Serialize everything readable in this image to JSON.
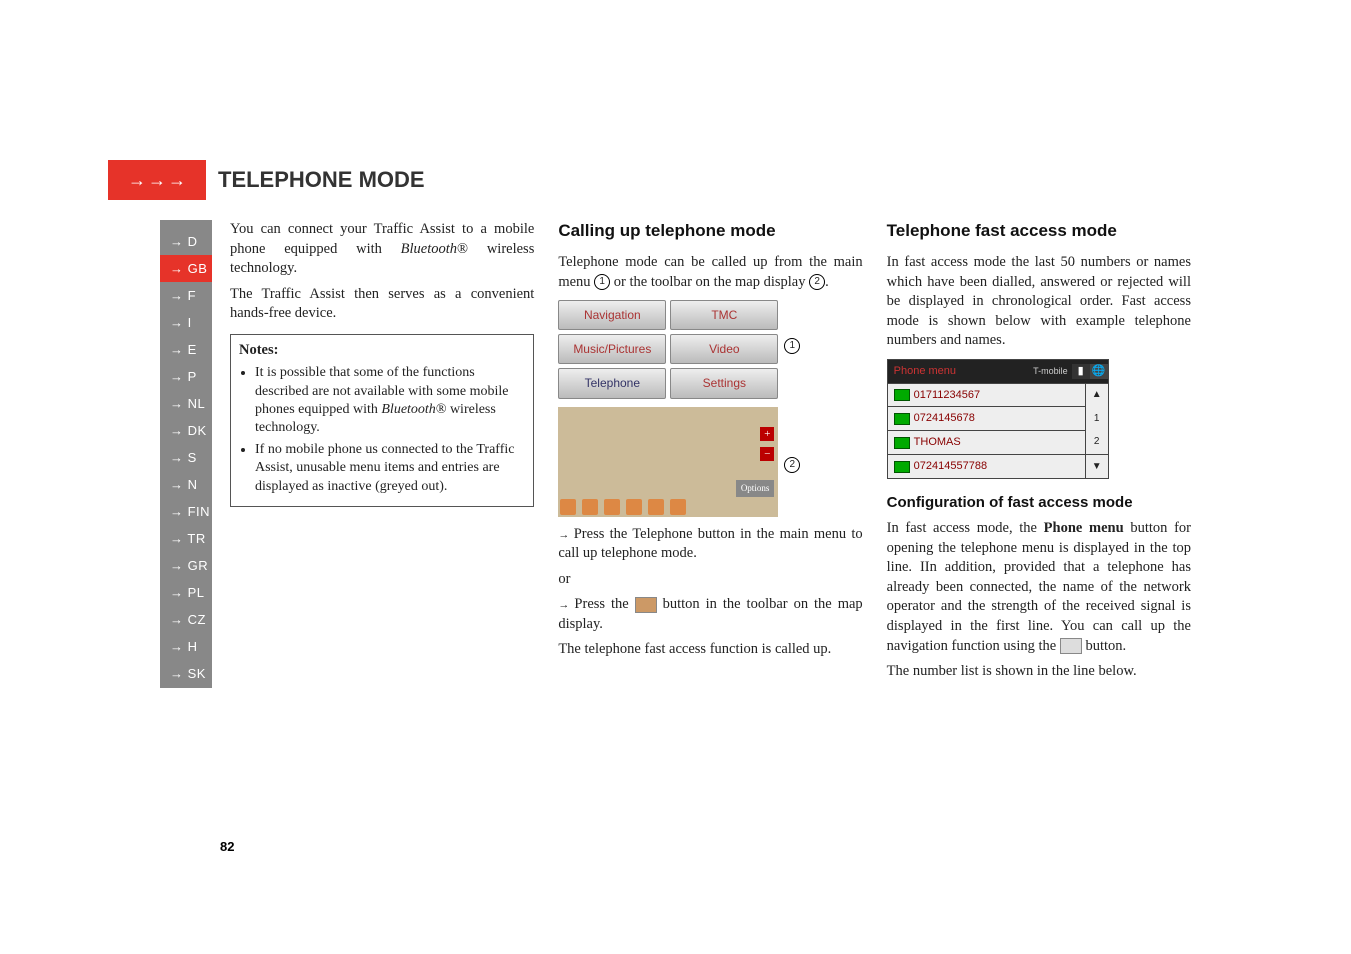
{
  "header": {
    "arrow_glyph": "→→→",
    "title": "TELEPHONE MODE"
  },
  "sidebar": {
    "items": [
      "→ D",
      "→ GB",
      "→ F",
      "→ I",
      "→ E",
      "→ P",
      "→ NL",
      "→ DK",
      "→ S",
      "→ N",
      "→ FIN",
      "→ TR",
      "→ GR",
      "→ PL",
      "→ CZ",
      "→ H",
      "→ SK"
    ],
    "active_index": 1
  },
  "col1": {
    "intro_pre": "You can connect your Traffic Assist to a mobile phone equipped with ",
    "bluetooth": "Bluetooth",
    "reg": "®",
    "intro_post": " wireless technology.",
    "line2": "The Traffic Assist then serves as a convenient hands-free device.",
    "notes_label": "Notes:",
    "note1_pre": "It is possible that some of the functions described are not available with some mobile phones equipped with ",
    "note1_bt": "Bluetooth",
    "note1_post": "® wireless technology.",
    "note2": "If no mobile phone us connected to the Traffic Assist, unusable menu items and entries are displayed as inactive (greyed out)."
  },
  "col2": {
    "heading": "Calling up telephone mode",
    "p1_a": "Telephone mode can be called up from the main menu ",
    "p1_b": " or the toolbar on the map display ",
    "menu": {
      "r1": [
        "Navigation",
        "TMC"
      ],
      "r2": [
        "Music/Pictures",
        "Video"
      ],
      "r3": [
        "Telephone",
        "Settings"
      ]
    },
    "map_options": "Options",
    "bullet1": "Press the Telephone button in the main menu to call up telephone mode.",
    "or": "or",
    "bullet2_a": "Press the ",
    "bullet2_b": " button in the toolbar on the map display.",
    "p2": "The telephone fast access function is called up.",
    "circ1": "1",
    "circ2": "2"
  },
  "col3": {
    "heading": "Telephone fast access mode",
    "p1": "In fast access mode the last 50 numbers or names which have been dialled, answered or rejected will be displayed in chronological order. Fast access mode is shown below with example telephone numbers and names.",
    "phone_header": "Phone menu",
    "carrier": "T-mobile",
    "rows": [
      "01711234567",
      "0724145678",
      "THOMAS",
      "072414557788"
    ],
    "side": [
      "▲",
      "1",
      "2",
      "▼"
    ],
    "sub": "Configuration of fast access mode",
    "p2_a": "In fast access mode, the ",
    "p2_bold": "Phone menu",
    "p2_b": " button for opening the telephone menu is displayed in the top line. IIn addition, provided that a telephone has already been connected, the name of the network operator and the strength of the received signal is displayed in the first line. You can call up the navigation function using the ",
    "p2_c": " button.",
    "p3": "The number list is shown in the line below."
  },
  "page_number": "82"
}
